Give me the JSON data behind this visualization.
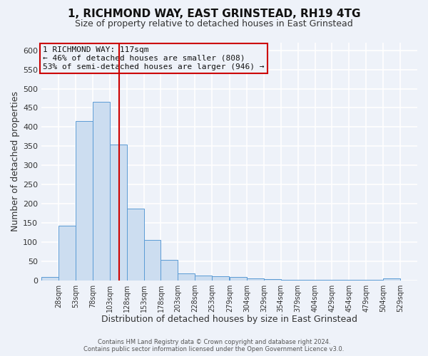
{
  "title": "1, RICHMOND WAY, EAST GRINSTEAD, RH19 4TG",
  "subtitle": "Size of property relative to detached houses in East Grinstead",
  "xlabel": "Distribution of detached houses by size in East Grinstead",
  "ylabel": "Number of detached properties",
  "bar_left_edges": [
    3,
    28,
    53,
    78,
    103,
    128,
    153,
    178,
    203,
    228,
    253,
    279,
    304,
    329,
    354,
    379,
    404,
    429,
    454,
    479,
    504
  ],
  "bar_heights": [
    8,
    143,
    415,
    465,
    355,
    187,
    105,
    53,
    17,
    13,
    11,
    8,
    5,
    3,
    2,
    2,
    1,
    1,
    1,
    1,
    4
  ],
  "bin_width": 25,
  "bar_color": "#ccddf0",
  "bar_edge_color": "#5b9bd5",
  "vline_x": 117,
  "vline_color": "#cc0000",
  "xlim_left": 3,
  "xlim_right": 554,
  "ylim_top": 620,
  "tick_positions": [
    28,
    53,
    78,
    103,
    128,
    153,
    178,
    203,
    228,
    253,
    279,
    304,
    329,
    354,
    379,
    404,
    429,
    454,
    479,
    504,
    529
  ],
  "tick_labels": [
    "28sqm",
    "53sqm",
    "78sqm",
    "103sqm",
    "128sqm",
    "153sqm",
    "178sqm",
    "203sqm",
    "228sqm",
    "253sqm",
    "279sqm",
    "304sqm",
    "329sqm",
    "354sqm",
    "379sqm",
    "404sqm",
    "429sqm",
    "454sqm",
    "479sqm",
    "504sqm",
    "529sqm"
  ],
  "yticks": [
    0,
    50,
    100,
    150,
    200,
    250,
    300,
    350,
    400,
    450,
    500,
    550,
    600
  ],
  "annotation_text": "1 RICHMOND WAY: 117sqm\n← 46% of detached houses are smaller (808)\n53% of semi-detached houses are larger (946) →",
  "annotation_box_edge": "#cc0000",
  "footer_line1": "Contains HM Land Registry data © Crown copyright and database right 2024.",
  "footer_line2": "Contains public sector information licensed under the Open Government Licence v3.0.",
  "bg_color": "#eef2f9",
  "grid_color": "#ffffff",
  "title_fontsize": 11,
  "subtitle_fontsize": 9,
  "xlabel_fontsize": 9,
  "ylabel_fontsize": 9,
  "tick_fontsize": 7,
  "ytick_fontsize": 8,
  "footer_fontsize": 6,
  "ann_fontsize": 8
}
